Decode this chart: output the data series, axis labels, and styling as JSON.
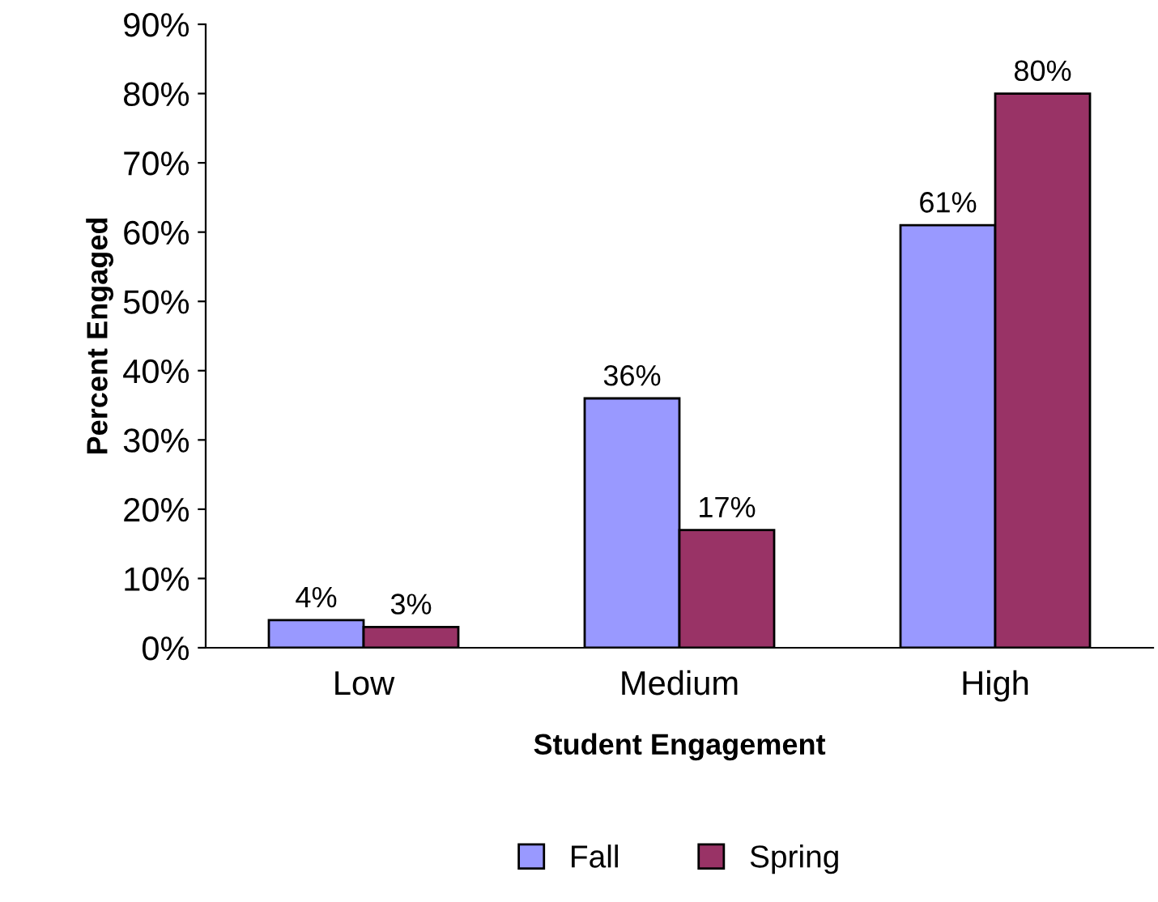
{
  "chart_data": {
    "type": "bar",
    "xlabel": "Student Engagement",
    "ylabel": "Percent Engaged",
    "categories": [
      "Low",
      "Medium",
      "High"
    ],
    "series": [
      {
        "name": "Fall",
        "color": "#9999ff",
        "values": [
          4,
          36,
          61
        ],
        "value_labels": [
          "4%",
          "36%",
          "61%"
        ]
      },
      {
        "name": "Spring",
        "color": "#993366",
        "values": [
          3,
          17,
          80
        ],
        "value_labels": [
          "3%",
          "17%",
          "80%"
        ]
      }
    ],
    "ylim": [
      0,
      90
    ],
    "yticks": [
      {
        "value": 0,
        "label": "0%"
      },
      {
        "value": 10,
        "label": "10%"
      },
      {
        "value": 20,
        "label": "20%"
      },
      {
        "value": 30,
        "label": "30%"
      },
      {
        "value": 40,
        "label": "40%"
      },
      {
        "value": 50,
        "label": "50%"
      },
      {
        "value": 60,
        "label": "60%"
      },
      {
        "value": 70,
        "label": "70%"
      },
      {
        "value": 80,
        "label": "80%"
      },
      {
        "value": 90,
        "label": "90%"
      }
    ],
    "grid": false,
    "legend": "bottom"
  }
}
